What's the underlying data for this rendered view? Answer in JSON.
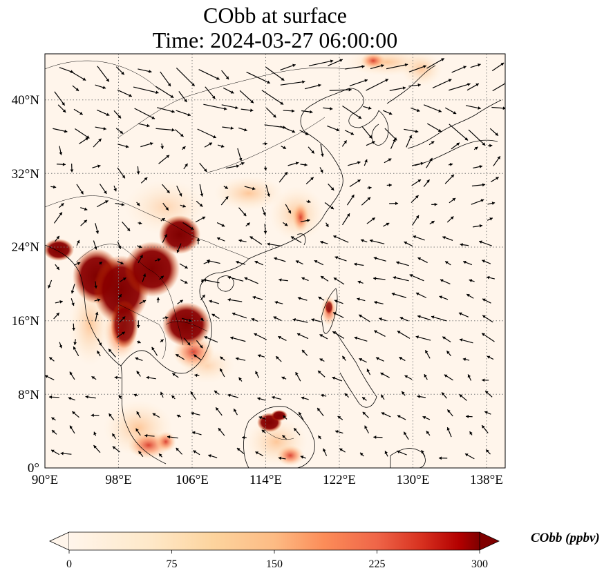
{
  "title": {
    "line1": "CObb at surface",
    "line2": "Time: 2024-03-27 06:00:00"
  },
  "map": {
    "lon_ticks": [
      "90°E",
      "98°E",
      "106°E",
      "114°E",
      "122°E",
      "130°E",
      "138°E"
    ],
    "lat_ticks": [
      "0°",
      "8°N",
      "16°N",
      "24°N",
      "32°N",
      "40°N"
    ],
    "extent": {
      "lon": [
        90,
        140
      ],
      "lat": [
        0,
        45
      ]
    },
    "background_color": "#fff5eb",
    "colormap": "OrRd",
    "colors": {
      "low": "#fff5eb",
      "mid": "#fdae6b",
      "high": "#d94801",
      "max": "#7f0000"
    }
  },
  "colorbar": {
    "ticks": [
      "0",
      "75",
      "150",
      "225",
      "300"
    ],
    "range": [
      0,
      300
    ],
    "label": "CObb (ppbv)",
    "extend": "both"
  },
  "plumes": [
    {
      "region": "Myanmar-Thailand-Laos-Yunnan",
      "level": "high"
    },
    {
      "region": "Laos-Cambodia",
      "level": "high"
    },
    {
      "region": "Northern Borneo",
      "level": "high"
    },
    {
      "region": "Luzon",
      "level": "medium"
    },
    {
      "region": "Southern China coast",
      "level": "low"
    },
    {
      "region": "Korea-Japan",
      "level": "low"
    }
  ]
}
